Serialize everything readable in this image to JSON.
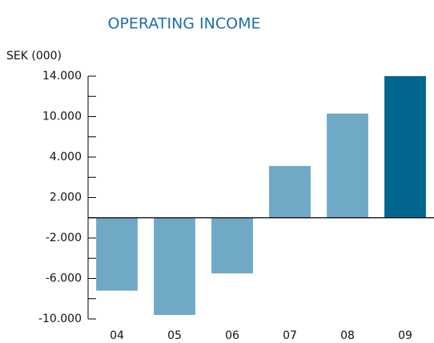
{
  "chart_data": {
    "type": "bar",
    "title": "OPERATING INCOME",
    "y_label": "SEK  (000)",
    "categories": [
      "04",
      "05",
      "06",
      "07",
      "08",
      "09"
    ],
    "values": [
      -7200,
      -9600,
      -5500,
      3560,
      10300,
      14000
    ],
    "colors": [
      "#6fa9c6",
      "#6fa9c6",
      "#6fa9c6",
      "#6fa9c6",
      "#6fa9c6",
      "#00658f"
    ],
    "ylim": [
      -10000,
      14000
    ],
    "yscale": "piecewise",
    "yticks": [
      {
        "value": 14000,
        "label": "14.000"
      },
      {
        "value": 10000,
        "label": "10.000"
      },
      {
        "value": 4000,
        "label": "4.000"
      },
      {
        "value": 2000,
        "label": "2.000"
      },
      {
        "value": -2000,
        "label": "-2.000"
      },
      {
        "value": -6000,
        "label": "-6.000"
      },
      {
        "value": -10000,
        "label": "-10.000"
      }
    ],
    "minor_yticks": [
      12000,
      7000,
      3000,
      0,
      -4000,
      -8000
    ]
  }
}
